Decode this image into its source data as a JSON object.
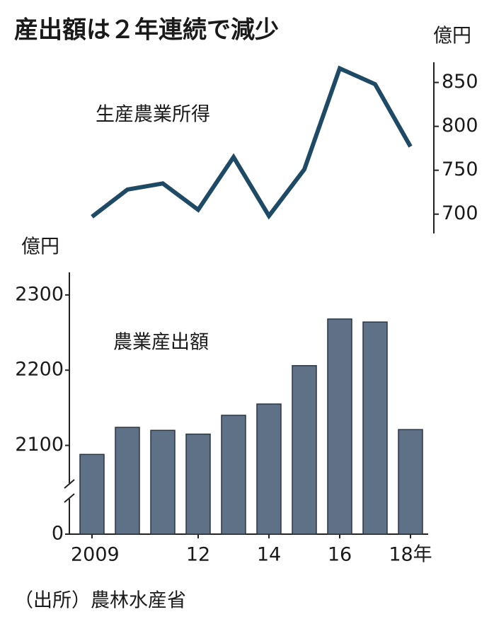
{
  "title": "産出額は２年連続で減少",
  "source": "（出所）農林水産省",
  "chart_data": [
    {
      "type": "line",
      "name": "生産農業所得",
      "unit": "億円",
      "color": "#1f4a66",
      "x": [
        2009,
        2010,
        2011,
        2012,
        2013,
        2014,
        2015,
        2016,
        2017,
        2018
      ],
      "values": [
        697,
        728,
        735,
        705,
        765,
        698,
        751,
        866,
        848,
        777
      ],
      "xlim": [
        2008.5,
        2018.5
      ],
      "ylim": [
        678,
        873
      ],
      "yticks": [
        700,
        750,
        800,
        850
      ]
    },
    {
      "type": "bar",
      "name": "農業産出額",
      "unit": "億円",
      "color": "#5f7186",
      "categories": [
        "2009",
        null,
        null,
        "12",
        null,
        "14",
        null,
        "16",
        null,
        "18年"
      ],
      "values": [
        2088,
        2124,
        2120,
        2115,
        2140,
        2155,
        2206,
        2268,
        2264,
        2121
      ],
      "ylim": [
        0,
        2330
      ],
      "axis_break": [
        0,
        1982
      ],
      "yticks": [
        0,
        2100,
        2200,
        2300
      ]
    }
  ]
}
